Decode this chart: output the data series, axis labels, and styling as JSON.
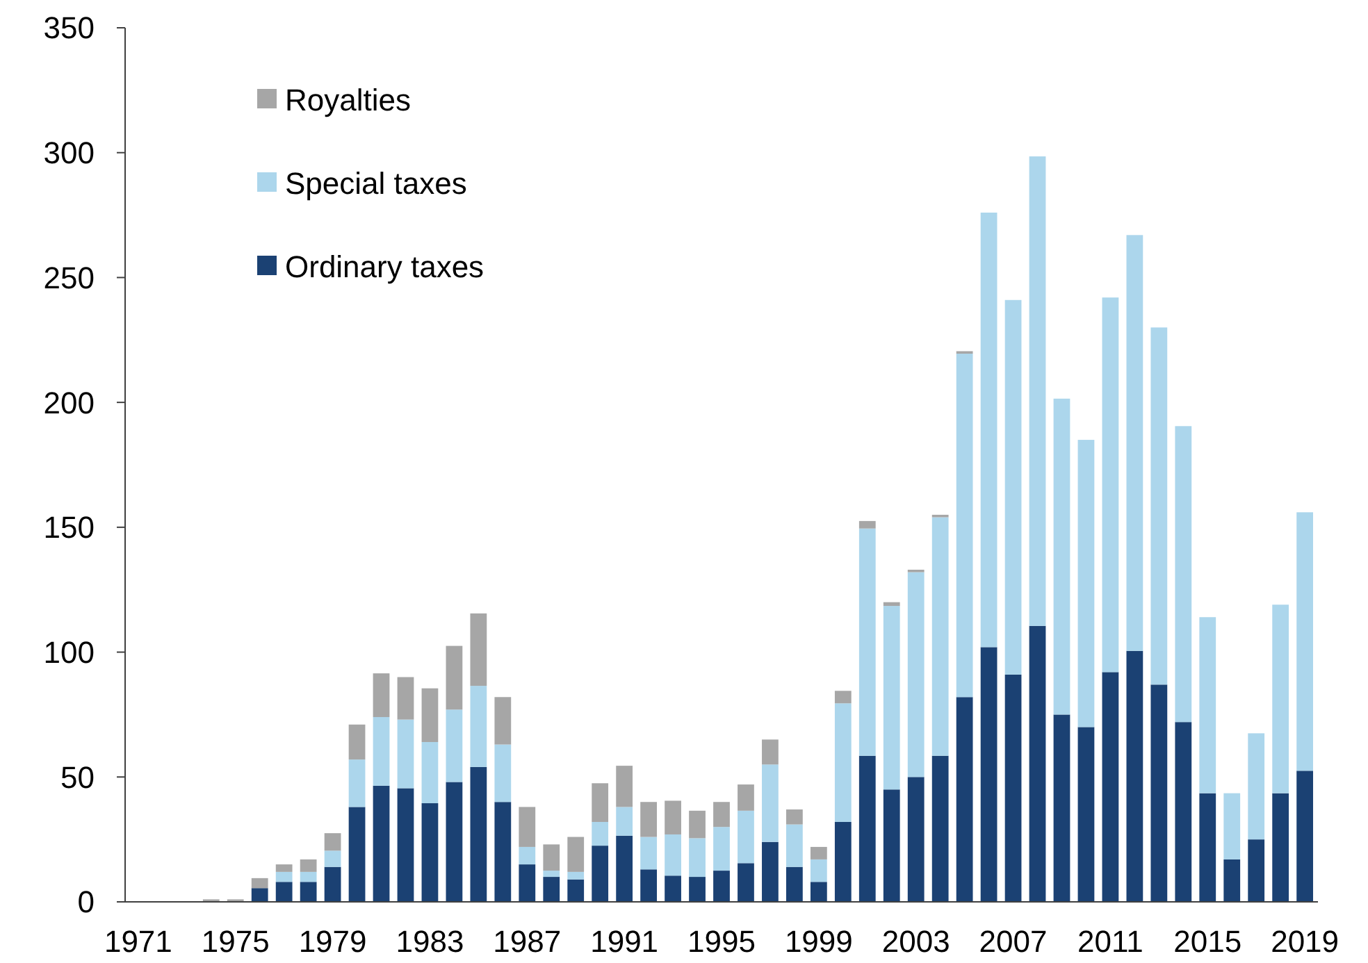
{
  "chart_data": {
    "type": "bar",
    "stacked": true,
    "categories": [
      "1971",
      null,
      null,
      null,
      "1975",
      null,
      null,
      null,
      "1979",
      null,
      null,
      null,
      "1983",
      null,
      null,
      null,
      "1987",
      null,
      null,
      null,
      "1991",
      null,
      null,
      null,
      "1995",
      null,
      null,
      null,
      "1999",
      null,
      null,
      null,
      "2003",
      null,
      null,
      null,
      "2007",
      null,
      null,
      null,
      "2011",
      null,
      null,
      null,
      "2015",
      null,
      null,
      null,
      "2019"
    ],
    "series": [
      {
        "name": "Ordinary taxes",
        "color": "#1b4173",
        "values": [
          0,
          0,
          0,
          0,
          0,
          5.5,
          8,
          8,
          14,
          38,
          46.5,
          45.5,
          39.5,
          48,
          54,
          40,
          15,
          10,
          9,
          22.5,
          26.5,
          13,
          10.5,
          10,
          12.5,
          15.5,
          24,
          14,
          8,
          32,
          58.5,
          45,
          50,
          58.5,
          82,
          102,
          91,
          110.5,
          75,
          70,
          92,
          100.5,
          87,
          72,
          43.5,
          17,
          25,
          43.5,
          52.5
        ]
      },
      {
        "name": "Special taxes",
        "color": "#acd6ec",
        "values": [
          0,
          0,
          0,
          0,
          0,
          0,
          4,
          4,
          6.5,
          19,
          27.5,
          27.5,
          24.5,
          29,
          32.5,
          23,
          7,
          2.5,
          3,
          9.5,
          11.5,
          13,
          16.5,
          15.5,
          17.5,
          21,
          31,
          17,
          9,
          47.5,
          91,
          73.5,
          82,
          95.5,
          137.5,
          174,
          150,
          188,
          126.5,
          115,
          150,
          166.5,
          143,
          118.5,
          70.5,
          26.5,
          42.5,
          75.5,
          103.5
        ]
      },
      {
        "name": "Royalties",
        "color": "#a6a6a6",
        "values": [
          null,
          null,
          null,
          1,
          1,
          4,
          3,
          5,
          7,
          14,
          17.5,
          17,
          21.5,
          25.5,
          29,
          19,
          16,
          10.5,
          14,
          15.5,
          16.5,
          14,
          13.5,
          11,
          10,
          10.5,
          10,
          6,
          5,
          5,
          3,
          1.5,
          1,
          1,
          1,
          0,
          0,
          0,
          0,
          0,
          0,
          0,
          0,
          0,
          0,
          0,
          0,
          0,
          0
        ]
      }
    ],
    "ylim": [
      0,
      350
    ],
    "yticks": [
      0,
      50,
      100,
      150,
      200,
      250,
      300,
      350
    ],
    "grid": false,
    "legend": "top left"
  }
}
